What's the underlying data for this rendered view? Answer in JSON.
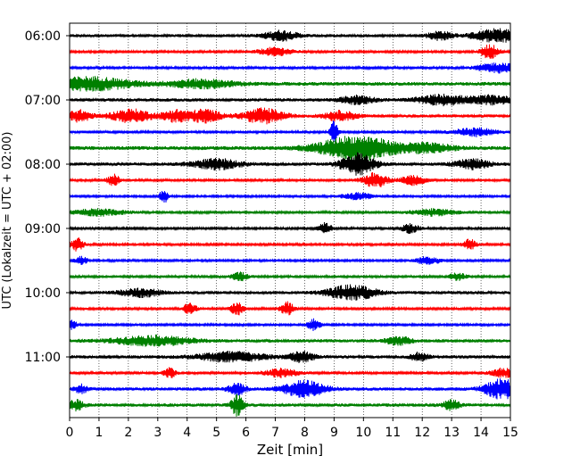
{
  "chart_data": {
    "type": "line",
    "description": "helicorder",
    "xlabel": "Zeit  [min]",
    "ylabel": "UTC (Lokalzeit = UTC + 02:00)",
    "xlim": [
      0,
      15
    ],
    "x_ticks": [
      0,
      1,
      2,
      3,
      4,
      5,
      6,
      7,
      8,
      9,
      10,
      11,
      12,
      13,
      14,
      15
    ],
    "x_tick_labels": [
      "0",
      "1",
      "2",
      "3",
      "4",
      "5",
      "6",
      "7",
      "8",
      "9",
      "10",
      "11",
      "12",
      "13",
      "14",
      "15"
    ],
    "y_tick_labels": [
      "06:00",
      "07:00",
      "08:00",
      "09:00",
      "10:00",
      "11:00"
    ],
    "y_tick_rows": [
      0,
      4,
      8,
      12,
      16,
      20
    ],
    "grid": "vertical-dotted",
    "row_minutes": 15,
    "colors": [
      "#000000",
      "#ff0000",
      "#0000ff",
      "#008000"
    ],
    "rows": [
      {
        "time": "06:00",
        "color": "#000000",
        "noise": 0.18,
        "events": [
          [
            7.2,
            0.6,
            0.4
          ],
          [
            12.6,
            0.5,
            0.3
          ],
          [
            14.6,
            0.8,
            0.6
          ]
        ]
      },
      {
        "time": "06:15",
        "color": "#ff0000",
        "noise": 0.14,
        "events": [
          [
            7.0,
            0.5,
            0.4
          ],
          [
            14.3,
            0.9,
            0.2
          ]
        ]
      },
      {
        "time": "06:30",
        "color": "#0000ff",
        "noise": 0.14,
        "events": [
          [
            14.6,
            0.6,
            0.5
          ]
        ]
      },
      {
        "time": "06:45",
        "color": "#008000",
        "noise": 0.22,
        "events": [
          [
            0.7,
            0.8,
            1.0
          ],
          [
            4.5,
            0.5,
            0.8
          ]
        ]
      },
      {
        "time": "07:00",
        "color": "#000000",
        "noise": 0.2,
        "events": [
          [
            9.8,
            0.5,
            0.4
          ],
          [
            12.7,
            0.6,
            0.6
          ],
          [
            14.4,
            0.5,
            0.5
          ]
        ]
      },
      {
        "time": "07:15",
        "color": "#ff0000",
        "noise": 0.18,
        "events": [
          [
            0.3,
            0.7,
            0.3
          ],
          [
            2.1,
            0.8,
            0.5
          ],
          [
            3.6,
            0.7,
            0.3
          ],
          [
            4.6,
            0.8,
            0.4
          ],
          [
            6.6,
            0.9,
            0.5
          ],
          [
            9.2,
            0.6,
            0.4
          ]
        ]
      },
      {
        "time": "07:30",
        "color": "#0000ff",
        "noise": 0.16,
        "events": [
          [
            9.0,
            1.4,
            0.1
          ],
          [
            13.8,
            0.5,
            0.5
          ]
        ]
      },
      {
        "time": "07:45",
        "color": "#008000",
        "noise": 0.24,
        "events": [
          [
            9.8,
            1.5,
            0.9
          ],
          [
            12.2,
            0.5,
            0.6
          ]
        ]
      },
      {
        "time": "08:00",
        "color": "#000000",
        "noise": 0.2,
        "events": [
          [
            5.0,
            0.6,
            0.6
          ],
          [
            9.8,
            1.3,
            0.4
          ],
          [
            13.7,
            0.6,
            0.4
          ]
        ]
      },
      {
        "time": "08:15",
        "color": "#ff0000",
        "noise": 0.15,
        "events": [
          [
            1.5,
            0.7,
            0.15
          ],
          [
            10.4,
            0.9,
            0.3
          ],
          [
            11.7,
            0.6,
            0.3
          ]
        ]
      },
      {
        "time": "08:30",
        "color": "#0000ff",
        "noise": 0.12,
        "events": [
          [
            3.2,
            0.9,
            0.1
          ],
          [
            9.8,
            0.4,
            0.4
          ]
        ]
      },
      {
        "time": "08:45",
        "color": "#008000",
        "noise": 0.16,
        "events": [
          [
            1.0,
            0.4,
            0.6
          ],
          [
            12.4,
            0.4,
            0.5
          ]
        ]
      },
      {
        "time": "09:00",
        "color": "#000000",
        "noise": 0.14,
        "events": [
          [
            8.7,
            0.7,
            0.15
          ],
          [
            11.6,
            0.6,
            0.2
          ]
        ]
      },
      {
        "time": "09:15",
        "color": "#ff0000",
        "noise": 0.14,
        "events": [
          [
            0.25,
            0.8,
            0.15
          ],
          [
            13.6,
            0.7,
            0.15
          ]
        ]
      },
      {
        "time": "09:30",
        "color": "#0000ff",
        "noise": 0.12,
        "events": [
          [
            0.4,
            0.5,
            0.15
          ],
          [
            12.2,
            0.5,
            0.3
          ]
        ]
      },
      {
        "time": "09:45",
        "color": "#008000",
        "noise": 0.16,
        "events": [
          [
            5.8,
            0.5,
            0.2
          ],
          [
            13.2,
            0.4,
            0.2
          ]
        ]
      },
      {
        "time": "10:00",
        "color": "#000000",
        "noise": 0.18,
        "events": [
          [
            2.4,
            0.5,
            0.5
          ],
          [
            9.6,
            0.9,
            0.6
          ]
        ]
      },
      {
        "time": "10:15",
        "color": "#ff0000",
        "noise": 0.14,
        "events": [
          [
            4.1,
            0.8,
            0.15
          ],
          [
            5.7,
            0.8,
            0.15
          ],
          [
            7.4,
            0.9,
            0.15
          ]
        ]
      },
      {
        "time": "10:30",
        "color": "#0000ff",
        "noise": 0.12,
        "events": [
          [
            8.3,
            0.7,
            0.15
          ],
          [
            0.1,
            0.6,
            0.1
          ]
        ]
      },
      {
        "time": "10:45",
        "color": "#008000",
        "noise": 0.2,
        "events": [
          [
            2.8,
            0.6,
            0.9
          ],
          [
            11.2,
            0.5,
            0.3
          ]
        ]
      },
      {
        "time": "11:00",
        "color": "#000000",
        "noise": 0.2,
        "events": [
          [
            5.5,
            0.6,
            0.8
          ],
          [
            7.9,
            0.6,
            0.3
          ],
          [
            11.9,
            0.5,
            0.2
          ]
        ]
      },
      {
        "time": "11:15",
        "color": "#ff0000",
        "noise": 0.15,
        "events": [
          [
            3.4,
            0.6,
            0.15
          ],
          [
            7.2,
            0.5,
            0.4
          ],
          [
            14.8,
            0.6,
            0.3
          ]
        ]
      },
      {
        "time": "11:30",
        "color": "#0000ff",
        "noise": 0.2,
        "events": [
          [
            0.4,
            0.5,
            0.15
          ],
          [
            5.7,
            0.8,
            0.2
          ],
          [
            8.0,
            1.0,
            0.5
          ],
          [
            14.7,
            1.2,
            0.4
          ]
        ]
      },
      {
        "time": "11:45",
        "color": "#008000",
        "noise": 0.2,
        "events": [
          [
            0.2,
            0.6,
            0.2
          ],
          [
            5.7,
            1.3,
            0.15
          ],
          [
            13.0,
            0.6,
            0.2
          ]
        ]
      }
    ]
  }
}
